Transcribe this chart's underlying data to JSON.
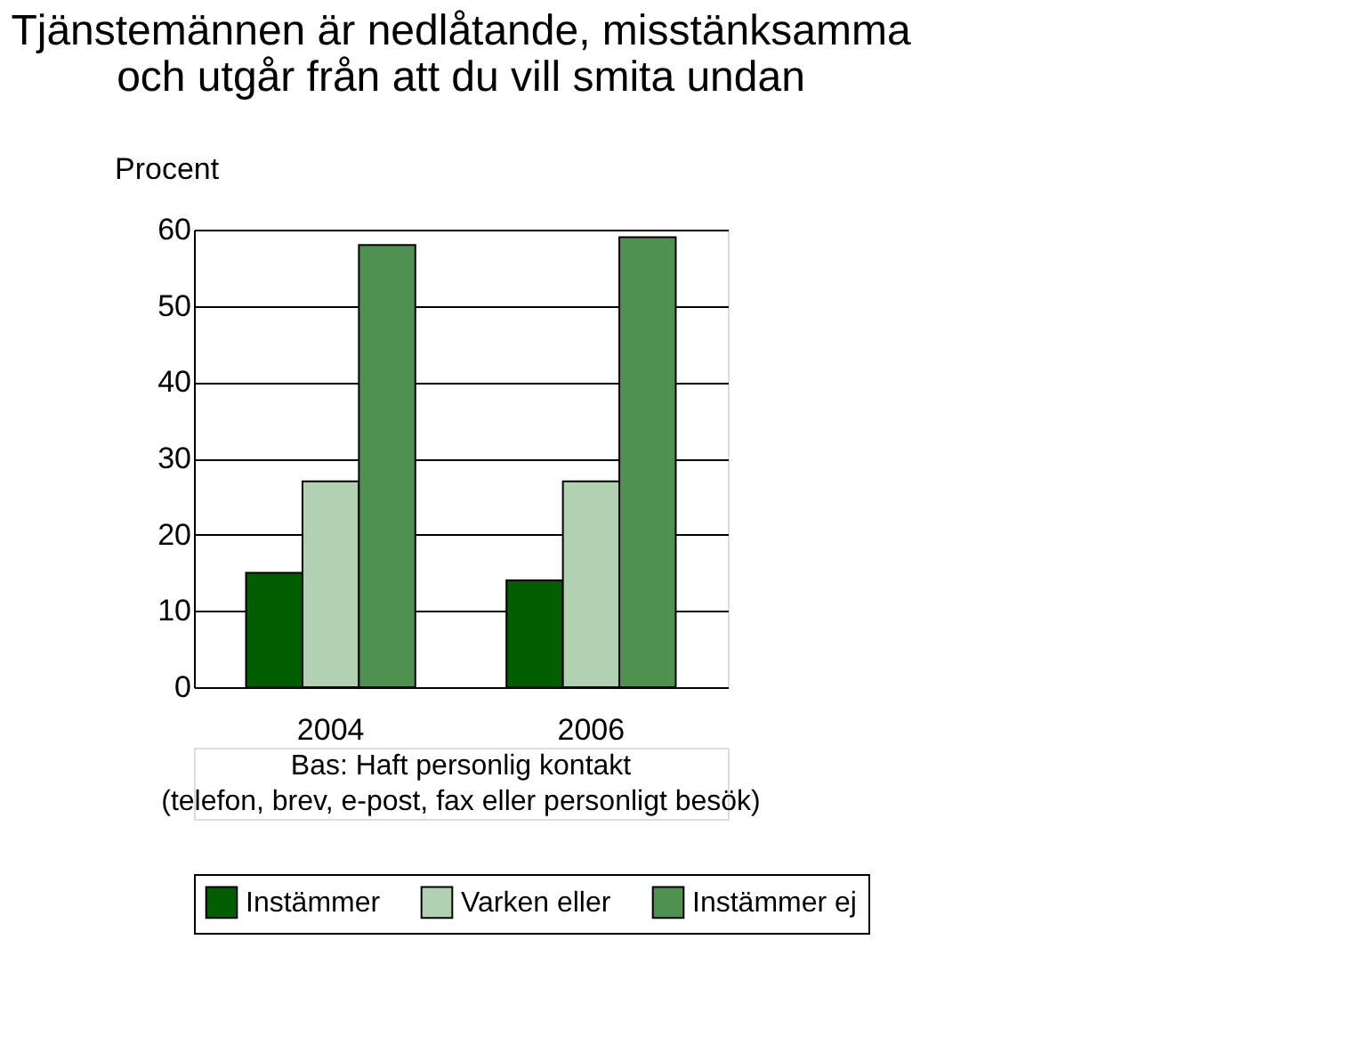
{
  "chart_data": {
    "type": "bar",
    "title": "Tjänstemännen är nedlåtande, misstänksamma\noch utgår från att du vill smita undan",
    "ylabel": "Procent",
    "categories": [
      "2004",
      "2006"
    ],
    "series": [
      {
        "name": "Instämmer",
        "color": "#005e00",
        "values": [
          15,
          14
        ]
      },
      {
        "name": "Varken eller",
        "color": "#b2d1b2",
        "values": [
          27,
          27
        ]
      },
      {
        "name": "Instämmer ej",
        "color": "#509050",
        "values": [
          58,
          59
        ]
      }
    ],
    "ylim": [
      0,
      60
    ],
    "yticks": [
      0,
      10,
      20,
      30,
      40,
      50,
      60
    ],
    "grid": "y",
    "legend": "bottom",
    "annotations": [
      "Bas: Haft personlig kontakt",
      "(telefon, brev, e-post, fax eller personligt besök)"
    ]
  }
}
